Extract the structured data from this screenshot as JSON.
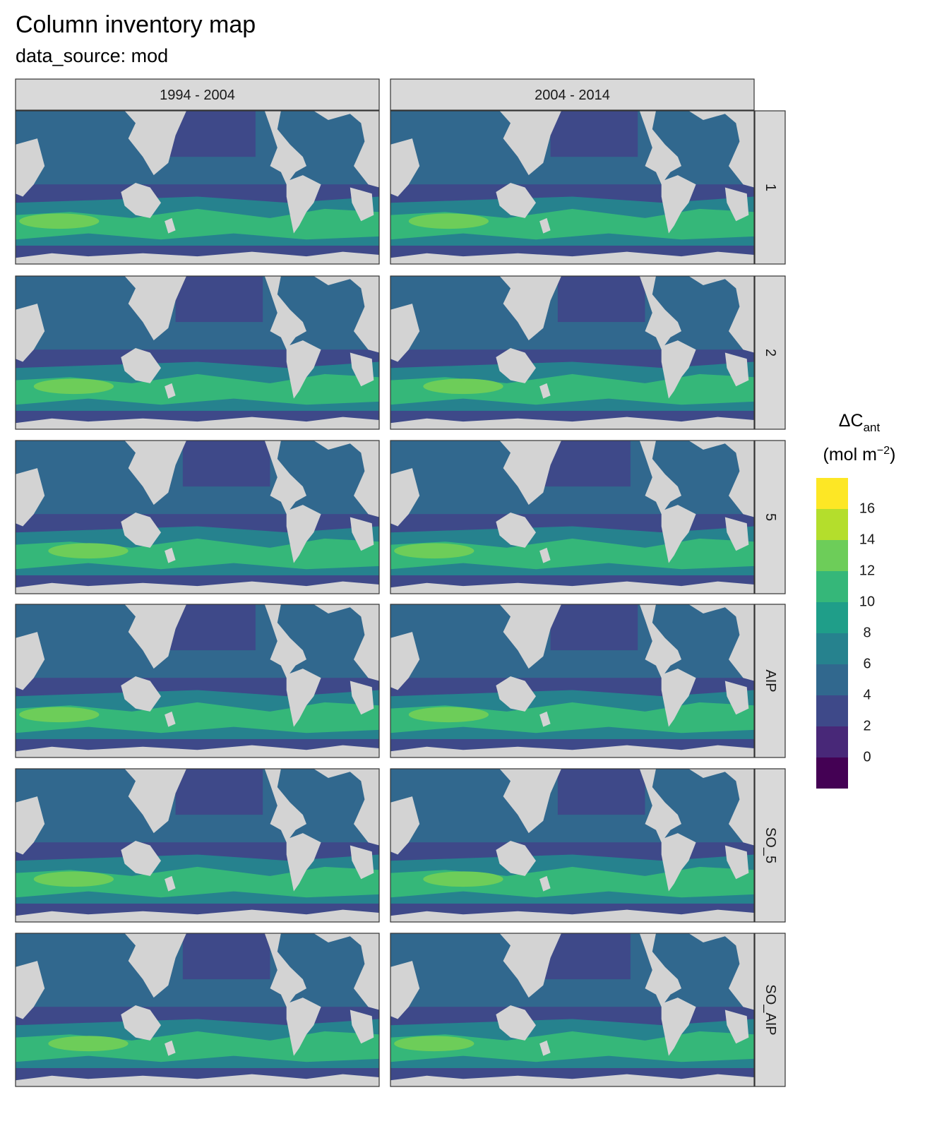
{
  "chart": {
    "title": "Column inventory map",
    "subtitle": "data_source: mod"
  },
  "chart_data": {
    "type": "heatmap",
    "facet_columns": [
      "1994 - 2004",
      "2004 - 2014"
    ],
    "facet_rows": [
      "1",
      "2",
      "5",
      "AIP",
      "SO_5",
      "SO_AIP"
    ],
    "legend": {
      "title_main": "ΔC",
      "title_sub": "ant",
      "unit_prefix": "(mol m",
      "unit_sup": "−2",
      "unit_suffix": ")",
      "breaks": [
        0,
        2,
        4,
        6,
        8,
        10,
        12,
        14,
        16
      ],
      "range": [
        -2,
        18
      ],
      "colors": [
        "#440154",
        "#482878",
        "#3E4989",
        "#31688E",
        "#26828E",
        "#1F9E89",
        "#35B779",
        "#6DCD59",
        "#B4DE2C",
        "#FDE725"
      ],
      "placement": "right"
    },
    "panel_colors": {
      "land": "#d3d3d3",
      "panel_border": "#333333",
      "strip_fill": "#d9d9d9"
    }
  }
}
